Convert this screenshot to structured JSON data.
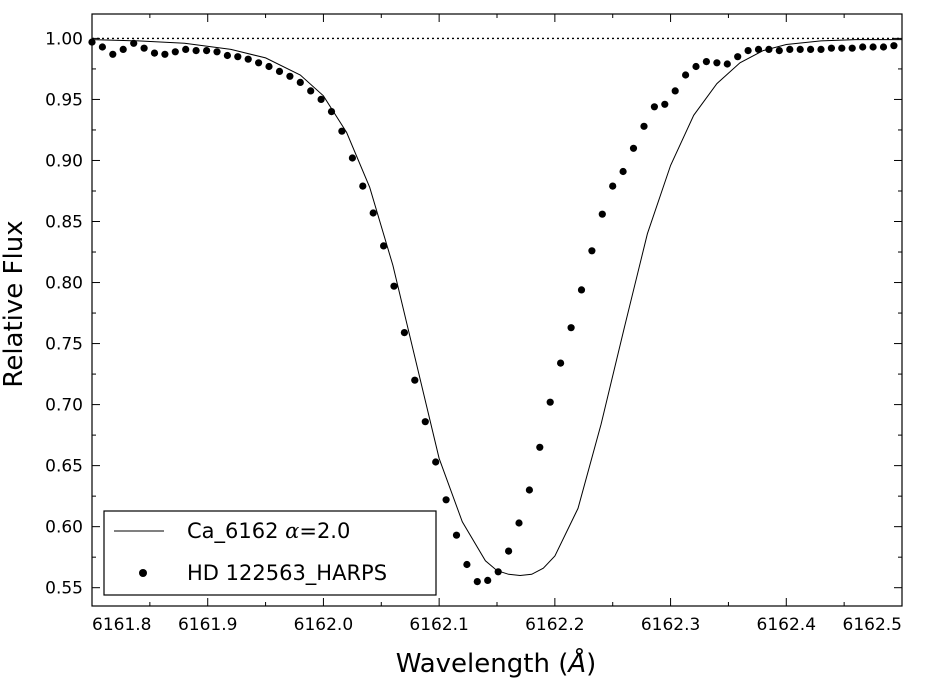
{
  "chart_data": {
    "type": "scatter",
    "xlabel_text": "Wavelength (",
    "xlabel_unit": "Å",
    "xlabel_close": ")",
    "ylabel": "Relative Flux",
    "xlim": [
      6161.8,
      6162.5
    ],
    "ylim": [
      0.535,
      1.02
    ],
    "x_ticks": [
      6161.8,
      6161.9,
      6162.0,
      6162.1,
      6162.2,
      6162.3,
      6162.4,
      6162.5
    ],
    "x_tick_labels": [
      "6161.8",
      "6161.9",
      "6162.0",
      "6162.1",
      "6162.2",
      "6162.3",
      "6162.4",
      "6162.5"
    ],
    "y_ticks": [
      0.55,
      0.6,
      0.65,
      0.7,
      0.75,
      0.8,
      0.85,
      0.9,
      0.95,
      1.0
    ],
    "y_tick_labels": [
      "0.55",
      "0.60",
      "0.65",
      "0.70",
      "0.75",
      "0.80",
      "0.85",
      "0.90",
      "0.95",
      "1.00"
    ],
    "reference_line": {
      "y": 1.0,
      "style": "dotted"
    },
    "legend": {
      "placement": "lower-left",
      "model_label_prefix": "Ca_6162 ",
      "model_label_alpha": "α",
      "model_label_suffix": "=2.0",
      "observed_label": "HD 122563_HARPS"
    },
    "series": [
      {
        "kind": "line",
        "color": "#000000",
        "x": [
          6161.8,
          6161.84,
          6161.88,
          6161.92,
          6161.95,
          6161.98,
          6162.0,
          6162.02,
          6162.04,
          6162.06,
          6162.08,
          6162.1,
          6162.12,
          6162.14,
          6162.15,
          6162.16,
          6162.17,
          6162.18,
          6162.19,
          6162.2,
          6162.22,
          6162.24,
          6162.26,
          6162.28,
          6162.3,
          6162.32,
          6162.34,
          6162.36,
          6162.38,
          6162.4,
          6162.43,
          6162.46,
          6162.5
        ],
        "y": [
          0.999,
          0.998,
          0.996,
          0.991,
          0.984,
          0.97,
          0.953,
          0.923,
          0.878,
          0.814,
          0.735,
          0.656,
          0.604,
          0.572,
          0.564,
          0.561,
          0.56,
          0.561,
          0.566,
          0.576,
          0.615,
          0.684,
          0.763,
          0.84,
          0.896,
          0.937,
          0.963,
          0.98,
          0.99,
          0.995,
          0.998,
          0.999,
          0.999
        ]
      },
      {
        "kind": "scatter",
        "color": "#000000",
        "x": [
          6161.8,
          6161.809,
          6161.818,
          6161.827,
          6161.836,
          6161.845,
          6161.854,
          6161.863,
          6161.872,
          6161.881,
          6161.89,
          6161.899,
          6161.908,
          6161.917,
          6161.926,
          6161.935,
          6161.944,
          6161.953,
          6161.962,
          6161.971,
          6161.98,
          6161.989,
          6161.998,
          6162.007,
          6162.016,
          6162.025,
          6162.034,
          6162.043,
          6162.052,
          6162.061,
          6162.07,
          6162.079,
          6162.088,
          6162.097,
          6162.106,
          6162.115,
          6162.124,
          6162.133,
          6162.142,
          6162.151,
          6162.16,
          6162.169,
          6162.178,
          6162.187,
          6162.196,
          6162.205,
          6162.214,
          6162.223,
          6162.232,
          6162.241,
          6162.25,
          6162.259,
          6162.268,
          6162.277,
          6162.286,
          6162.295,
          6162.304,
          6162.313,
          6162.322,
          6162.331,
          6162.34,
          6162.349,
          6162.358,
          6162.367,
          6162.376,
          6162.385,
          6162.394,
          6162.403,
          6162.412,
          6162.421,
          6162.43,
          6162.439,
          6162.448,
          6162.457,
          6162.466,
          6162.475,
          6162.484,
          6162.493
        ],
        "y": [
          0.997,
          0.993,
          0.987,
          0.991,
          0.996,
          0.992,
          0.988,
          0.987,
          0.989,
          0.991,
          0.99,
          0.99,
          0.989,
          0.986,
          0.985,
          0.983,
          0.98,
          0.977,
          0.973,
          0.969,
          0.964,
          0.957,
          0.95,
          0.94,
          0.924,
          0.902,
          0.879,
          0.857,
          0.83,
          0.797,
          0.759,
          0.72,
          0.686,
          0.653,
          0.622,
          0.593,
          0.569,
          0.555,
          0.556,
          0.563,
          0.58,
          0.603,
          0.63,
          0.665,
          0.702,
          0.734,
          0.763,
          0.794,
          0.826,
          0.856,
          0.879,
          0.891,
          0.91,
          0.928,
          0.944,
          0.946,
          0.957,
          0.97,
          0.977,
          0.981,
          0.98,
          0.979,
          0.985,
          0.99,
          0.991,
          0.991,
          0.99,
          0.991,
          0.991,
          0.991,
          0.991,
          0.992,
          0.992,
          0.992,
          0.993,
          0.993,
          0.993,
          0.994
        ]
      }
    ]
  }
}
